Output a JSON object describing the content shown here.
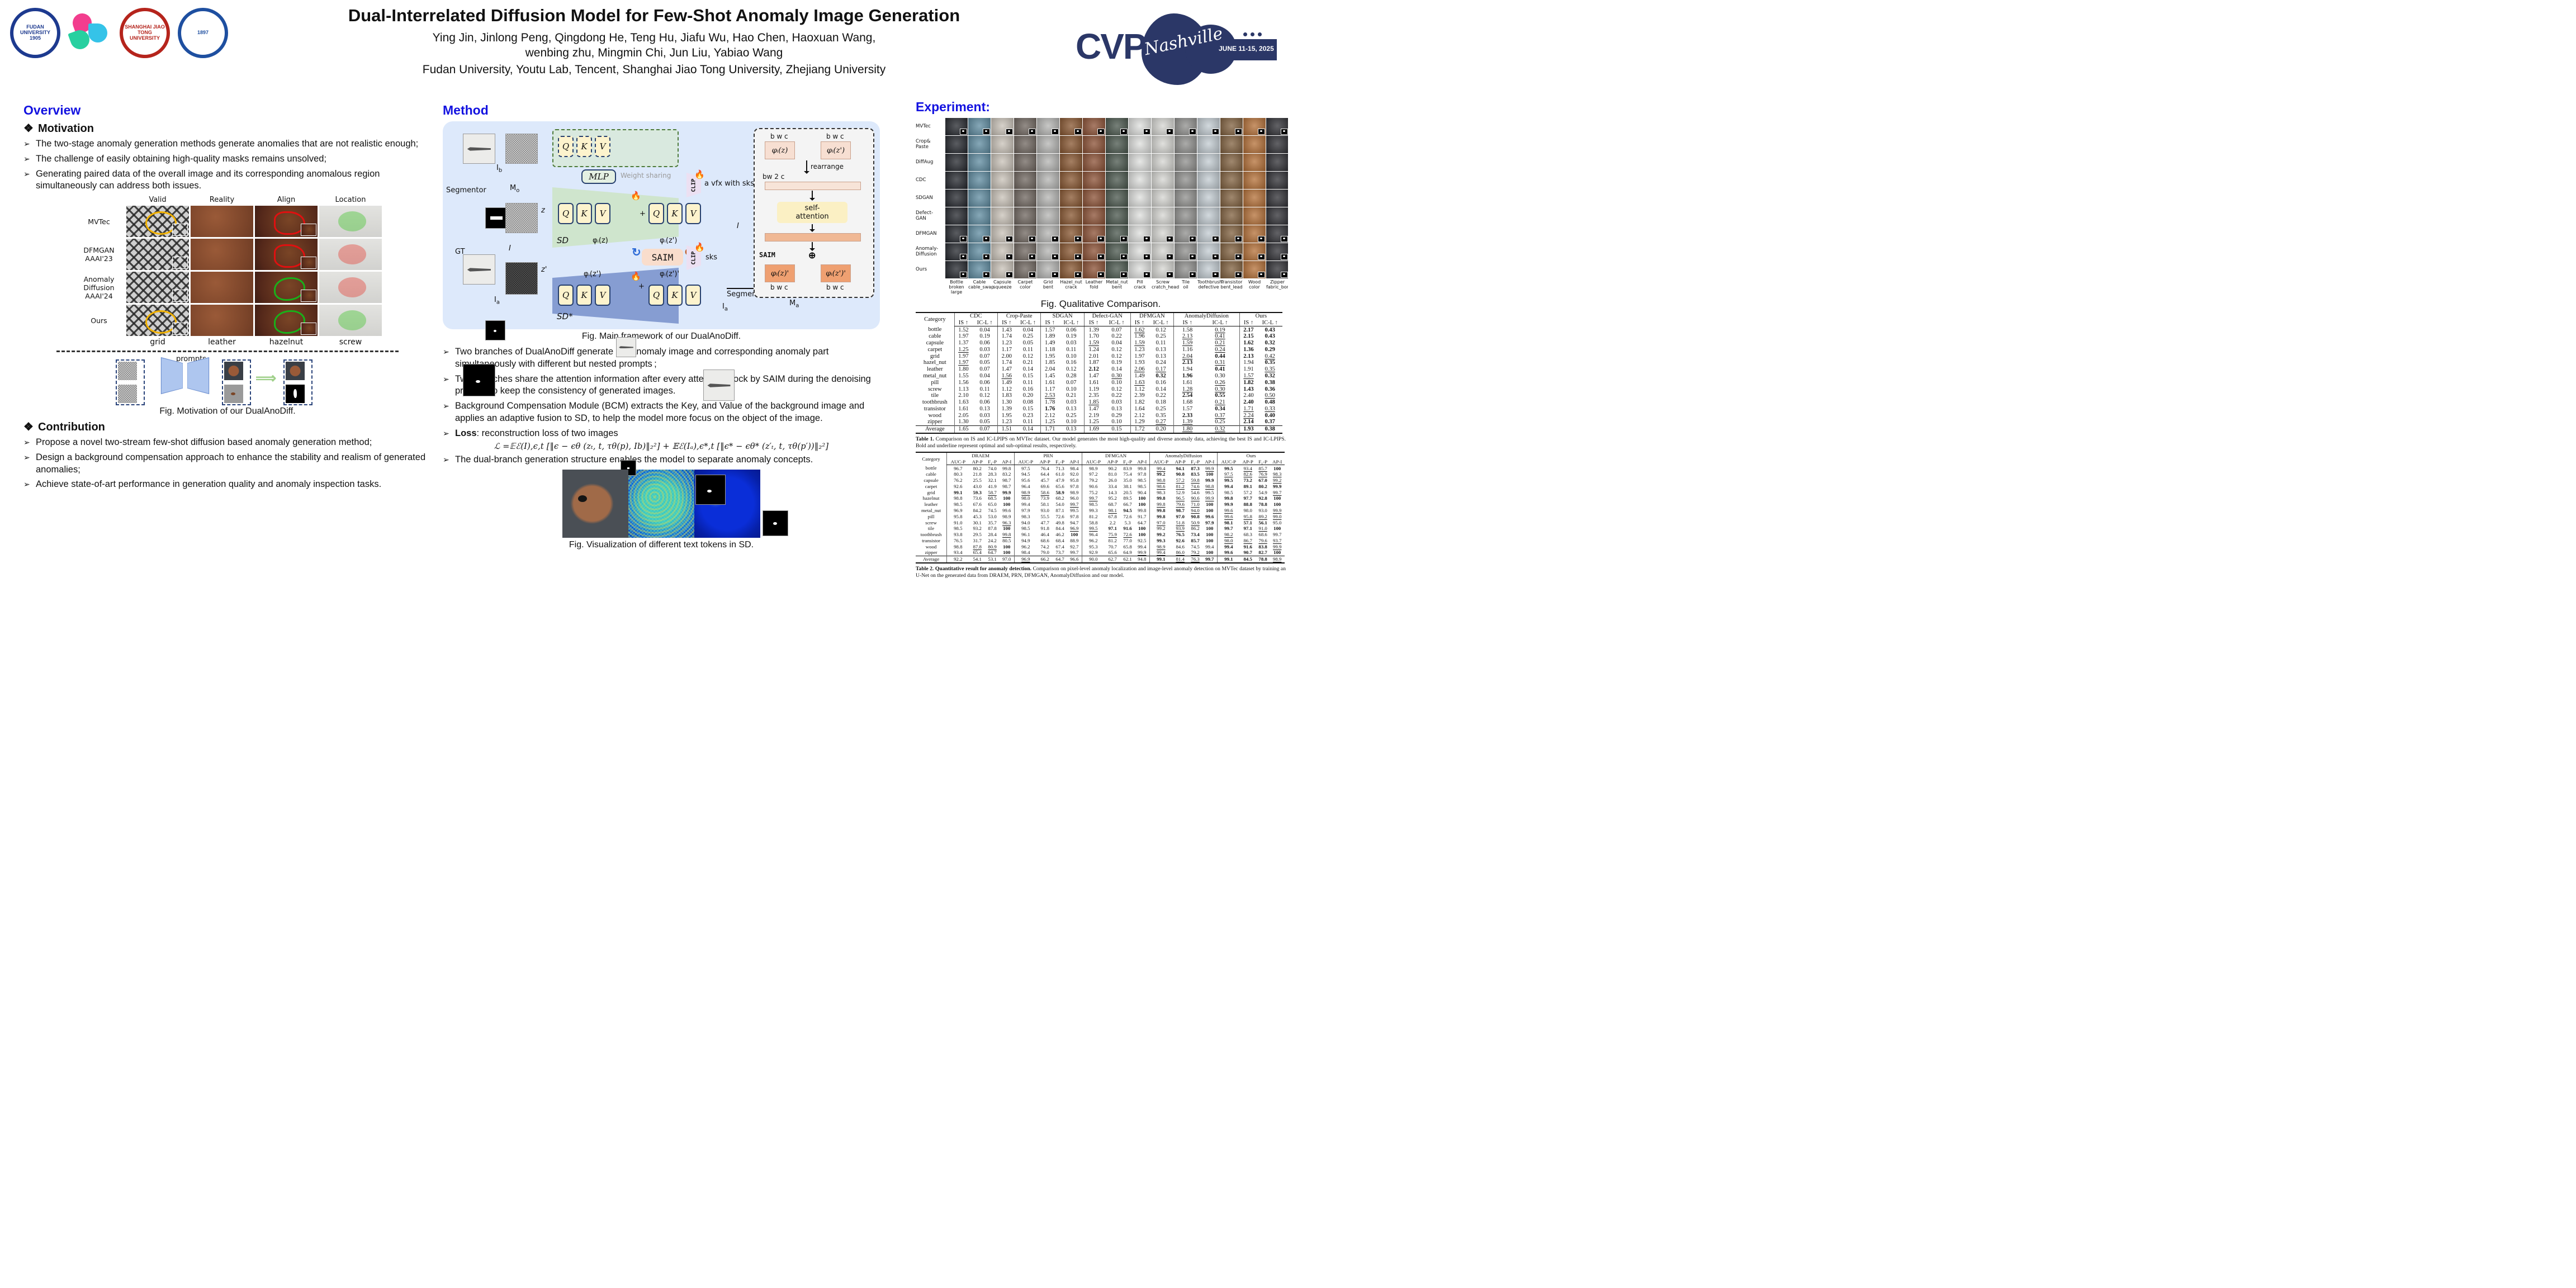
{
  "header": {
    "title": "Dual-Interrelated Diffusion Model for Few-Shot Anomaly Image Generation",
    "authors_line1": "Ying Jin, Jinlong Peng, Qingdong He, Teng Hu, Jiafu Wu, Hao Chen, Haoxuan Wang,",
    "authors_line2": "wenbing zhu, Mingmin Chi, Jun Liu, Yabiao Wang",
    "affiliations": "Fudan University, Youtu Lab, Tencent, Shanghai Jiao Tong University, Zhejiang University",
    "logos": {
      "fudan_top": "FUDAN UNIVERSITY",
      "fudan_year": "1905",
      "sjtu": "SHANGHAI JIAO TONG UNIVERSITY",
      "zju_year": "1897"
    },
    "cvpr": {
      "acronym": "CVPR",
      "city": "Nashville",
      "dates": "JUNE 11-15, 2025"
    }
  },
  "colors": {
    "heading_blue": "#1312e0",
    "cvpr_navy": "#2b3767",
    "framework_bg": "#dde9fb",
    "sd_green": "#cde4c4",
    "sd_star_blue": "#7c95cd",
    "saim_pink": "#f9ddcc",
    "qkv_yellow": "#fdf3cd"
  },
  "overview": {
    "heading": "Overview",
    "motivation_heading": "Motivation",
    "motivation_bullets": [
      "The two-stage anomaly generation methods generate anomalies that are not realistic enough;",
      "The challenge of easily obtaining high-quality masks remains unsolved;",
      "Generating paired data of the overall image and its corresponding anomalous region simultaneously can address both issues."
    ],
    "figure1": {
      "col_labels": [
        "Valid",
        "Reality",
        "Align",
        "Location"
      ],
      "row_labels": [
        "MVTec",
        "DFMGAN\nAAAI'23",
        "Anomaly\nDiffusion\nAAAI'24",
        "Ours"
      ],
      "bottom_labels": [
        "grid",
        "leather",
        "hazelnut",
        "screw"
      ],
      "overlays": [
        [
          "yellow",
          "",
          "redline",
          "green"
        ],
        [
          "",
          "",
          "redline",
          "red"
        ],
        [
          "",
          "",
          "greenline",
          "red"
        ],
        [
          "yellow",
          "",
          "greenline",
          "green"
        ]
      ],
      "prompts_label": "prompts",
      "caption": "Fig. Motivation of our DualAnoDiff."
    },
    "contribution_heading": "Contribution",
    "contribution_bullets": [
      "Propose a novel two-stream few-shot diffusion based anomaly generation method;",
      "Design a background compensation approach to enhance the stability and realism of generated anomalies;",
      "Achieve state-of-art performance in generation quality and anomaly inspection tasks."
    ]
  },
  "method": {
    "heading": "Method",
    "figure_caption": "Fig. Main framework of our DualAnoDiff.",
    "diagram": {
      "segmentor": "Segmentor",
      "segmentor2": "Segmentor",
      "gt": "GT",
      "i": "I",
      "i_out": "I",
      "z": "z",
      "zp": "z'",
      "sd": "SD",
      "sd_star": "SD*",
      "saim": "SAIM",
      "saim_panel": "SAIM",
      "mlp": "MLP",
      "weight_sharing": "Weight sharing",
      "clip": "CLIP",
      "prompt_full": "a vfx with sks",
      "prompt_part": "sks",
      "q": "Q",
      "k": "K",
      "v": "V",
      "plus": "+",
      "oplus": "⊕",
      "fire": "🔥",
      "bwc": "b w c",
      "bw2c": "bw 2 c",
      "rearrange": "rearrange",
      "self_attention": "self-\nattention",
      "phi_z": "φᵢ(z)",
      "phi_zp": "φᵢ(z')",
      "phi_z_out": "φᵢ(z)'",
      "phi_zp_out": "φᵢ(z')'",
      "sub_ib": [
        "I",
        "b"
      ],
      "sub_mo": [
        "M",
        "o"
      ],
      "sub_ia": [
        "I",
        "a"
      ],
      "sub_ia2": [
        "I",
        "a"
      ],
      "sub_ma": [
        "M",
        "a"
      ]
    },
    "bullets": [
      "Two branches of DualAnoDiff generate the anomaly image and corresponding anomaly part simultaneously with different but nested prompts ;",
      "Two branches share the attention information after every attention block by  SAIM during the denoising process to keep the consistency of generated images.",
      "Background Compensation Module (BCM) extracts the Key, and Value of the background image and applies an adaptive fusion to SD,  to help the model more focus on the object of the image."
    ],
    "loss_label": "Loss",
    "loss_rest": ": reconstruction loss of two images",
    "equation": "ℒ =𝔼ℰ(I),ϵ,t [‖ϵ − ϵθ (zₜ, t, τθ(p), Ib)‖₂²] + 𝔼ℰ(Iₐ),ϵ*,t [‖ϵ* − ϵθ* (z′ₜ, t, τθ(p′))‖₂²]",
    "final_bullet": "The dual-branch generation structure enables the model to separate anomaly concepts.",
    "vis_caption": "Fig. Visualization of different text tokens in SD."
  },
  "experiment": {
    "heading": "Experiment:",
    "qualitative": {
      "row_labels": [
        "MVTec",
        "Crop&\nPaste",
        "DiffAug",
        "CDC",
        "SDGAN",
        "Defect-\nGAN",
        "DFMGAN",
        "Anomaly-\nDiffusion",
        "Ours"
      ],
      "col_labels": [
        "Bottle\nbroken large",
        "Cable\ncable_swap",
        "Capsule\nsqueeze",
        "Carpet\ncolor",
        "Grid\nbent",
        "Hazel_nut\ncrack",
        "Leather\nfold",
        "Metal_nut\nbent",
        "Pill\ncrack",
        "Screw\ncratch_head",
        "Tile\noil",
        "Toothbrush\ndefective",
        "Transistor\nbent_lead",
        "Wood\ncolor",
        "Zipper\nfabric_border"
      ],
      "tile_colors": [
        "#23262c",
        "#5e8ba0",
        "#c9c2b8",
        "#6e655e",
        "#b5b5b3",
        "#87552f",
        "#8a4f33",
        "#49564c",
        "#dfe0de",
        "#d6d6d2",
        "#8f8f8d",
        "#c3ccd2",
        "#80603e",
        "#b46f36",
        "#2e2e33"
      ],
      "mask_rows": [
        0,
        6,
        7,
        8
      ],
      "caption": "Fig. Qualitative Comparison."
    },
    "table1": {
      "category_header": "Category",
      "group_headers": [
        "CDC",
        "Crop-Paste",
        "SDGAN",
        "Defect-GAN",
        "DFMGAN",
        "AnomalyDiffusion",
        "Ours"
      ],
      "sub_headers": [
        "IS ↑",
        "IC-L ↑"
      ],
      "categories": [
        "bottle",
        "cable",
        "capsule",
        "carpet",
        "grid",
        "hazel_nut",
        "leather",
        "metal_nut",
        "pill",
        "screw",
        "tile",
        "toothbrush",
        "transistor",
        "wood",
        "zipper",
        "Average"
      ],
      "rows": [
        [
          "1.52",
          "0.04",
          "1.43",
          "0.04",
          "1.57",
          "0.06",
          "1.39",
          "0.07",
          "u1.62",
          "0.12",
          "1.58",
          "u0.19",
          "b2.17",
          "b0.43"
        ],
        [
          "1.97",
          "0.19",
          "1.74",
          "0.25",
          "1.89",
          "0.19",
          "1.70",
          "0.22",
          "1.96",
          "0.25",
          "u2.13",
          "u0.41",
          "b2.15",
          "b0.43"
        ],
        [
          "1.37",
          "0.06",
          "1.23",
          "0.05",
          "1.49",
          "0.03",
          "u1.59",
          "0.04",
          "u1.59",
          "0.11",
          "u1.59",
          "u0.21",
          "b1.62",
          "b0.32"
        ],
        [
          "u1.25",
          "0.03",
          "1.17",
          "0.11",
          "1.18",
          "0.11",
          "1.24",
          "0.12",
          "1.23",
          "0.13",
          "1.16",
          "u0.24",
          "b1.36",
          "b0.29"
        ],
        [
          "1.97",
          "0.07",
          "2.00",
          "0.12",
          "1.95",
          "0.10",
          "2.01",
          "0.12",
          "1.97",
          "0.13",
          "u2.04",
          "b0.44",
          "b2.13",
          "u0.42"
        ],
        [
          "u1.97",
          "0.05",
          "1.74",
          "0.21",
          "1.85",
          "0.16",
          "1.87",
          "0.19",
          "1.93",
          "0.24",
          "b2.13",
          "u0.31",
          "1.94",
          "b0.35"
        ],
        [
          "1.80",
          "0.07",
          "1.47",
          "0.14",
          "2.04",
          "0.12",
          "b2.12",
          "0.14",
          "u2.06",
          "u0.17",
          "1.94",
          "b0.41",
          "1.91",
          "u0.35"
        ],
        [
          "1.55",
          "0.04",
          "u1.56",
          "0.15",
          "1.45",
          "0.28",
          "1.47",
          "u0.30",
          "1.49",
          "b0.32",
          "b1.96",
          "0.30",
          "u1.57",
          "b0.32"
        ],
        [
          "1.56",
          "0.06",
          "1.49",
          "0.11",
          "1.61",
          "0.07",
          "1.61",
          "0.10",
          "u1.63",
          "0.16",
          "1.61",
          "u0.26",
          "b1.82",
          "b0.38"
        ],
        [
          "1.13",
          "0.11",
          "1.12",
          "0.16",
          "1.17",
          "0.10",
          "1.19",
          "0.12",
          "1.12",
          "0.14",
          "u1.28",
          "u0.30",
          "b1.43",
          "b0.36"
        ],
        [
          "2.10",
          "0.12",
          "1.83",
          "0.20",
          "u2.53",
          "0.21",
          "2.35",
          "0.22",
          "2.39",
          "0.22",
          "b2.54",
          "b0.55",
          "2.40",
          "u0.50"
        ],
        [
          "1.63",
          "0.06",
          "1.30",
          "0.08",
          "1.78",
          "0.03",
          "u1.85",
          "0.03",
          "1.82",
          "0.18",
          "1.68",
          "u0.21",
          "b2.40",
          "b0.48"
        ],
        [
          "1.61",
          "0.13",
          "1.39",
          "0.15",
          "b1.76",
          "0.13",
          "1.47",
          "0.13",
          "1.64",
          "0.25",
          "1.57",
          "b0.34",
          "u1.71",
          "u0.33"
        ],
        [
          "2.05",
          "0.03",
          "1.95",
          "0.23",
          "2.12",
          "0.25",
          "2.19",
          "0.29",
          "2.12",
          "0.35",
          "b2.33",
          "u0.37",
          "u2.24",
          "b0.40"
        ],
        [
          "1.30",
          "0.05",
          "1.23",
          "0.11",
          "1.25",
          "0.10",
          "1.25",
          "0.10",
          "1.29",
          "u0.27",
          "u1.39",
          "0.25",
          "b2.14",
          "b0.37"
        ],
        [
          "1.65",
          "0.07",
          "1.51",
          "0.14",
          "1.71",
          "0.13",
          "1.69",
          "0.15",
          "1.72",
          "0.20",
          "u1.80",
          "u0.32",
          "b1.93",
          "b0.38"
        ]
      ],
      "caption_lead": "Table 1.",
      "caption": "  Comparison on IS and IC-LPIPS on MVTec dataset.  Our model generates the most high-quality and diverse anomaly data, achieving the best IS and IC-LPIPS. Bold and underline represent optimal and sub-optimal results, respectively."
    },
    "table2": {
      "category_header": "Category",
      "group_headers": [
        "DRAEM",
        "PRN",
        "DFMGAN",
        "AnomalyDiffusion",
        "Ours"
      ],
      "sub_headers": [
        "AUC-P",
        "AP-P",
        "F₁-P",
        "AP-I"
      ],
      "categories": [
        "bottle",
        "cable",
        "capsule",
        "carpet",
        "grid",
        "hazelnut",
        "leather",
        "metal_nut",
        "pill",
        "screw",
        "tile",
        "toothbrush",
        "transistor",
        "wood",
        "zipper",
        "Average"
      ],
      "rows": [
        [
          "96.7",
          "80.2",
          "74.0",
          "99.8",
          "97.5",
          "76.4",
          "71.3",
          "98.4",
          "98.9",
          "90.2",
          "83.9",
          "99.8",
          "u99.4",
          "b94.1",
          "b87.3",
          "u99.9",
          "b99.5",
          "u93.4",
          "u85.7",
          "b100"
        ],
        [
          "80.3",
          "21.8",
          "28.3",
          "83.2",
          "94.5",
          "64.4",
          "61.0",
          "92.0",
          "97.2",
          "81.0",
          "75.4",
          "97.8",
          "b99.2",
          "b90.8",
          "b83.5",
          "b100",
          "u97.5",
          "u82.6",
          "u76.9",
          "u98.3"
        ],
        [
          "76.2",
          "25.5",
          "32.1",
          "98.7",
          "95.6",
          "45.7",
          "47.9",
          "95.8",
          "79.2",
          "26.0",
          "35.0",
          "98.5",
          "u98.8",
          "u57.2",
          "u59.8",
          "b99.9",
          "b99.5",
          "b73.2",
          "b67.0",
          "u99.2"
        ],
        [
          "92.6",
          "43.0",
          "41.9",
          "98.7",
          "96.4",
          "69.6",
          "65.6",
          "97.8",
          "90.6",
          "33.4",
          "38.1",
          "98.5",
          "u98.6",
          "u81.2",
          "u74.6",
          "u98.8",
          "b99.4",
          "b89.1",
          "b80.2",
          "b99.9"
        ],
        [
          "b99.1",
          "b59.3",
          "u58.7",
          "b99.9",
          "u98.9",
          "u58.6",
          "b58.9",
          "98.9",
          "75.2",
          "14.3",
          "20.5",
          "90.4",
          "98.3",
          "52.9",
          "54.6",
          "99.5",
          "98.5",
          "57.2",
          "54.9",
          "u99.7"
        ],
        [
          "98.8",
          "73.6",
          "68.5",
          "b100",
          "98.0",
          "73.9",
          "68.2",
          "96.0",
          "u99.7",
          "95.2",
          "89.5",
          "b100",
          "b99.8",
          "u96.5",
          "u90.6",
          "u99.9",
          "b99.8",
          "b97.7",
          "b92.8",
          "b100"
        ],
        [
          "98.5",
          "67.6",
          "65.0",
          "b100",
          "99.4",
          "58.1",
          "54.0",
          "u99.7",
          "98.5",
          "68.7",
          "66.7",
          "b100",
          "u99.8",
          "u79.6",
          "u71.0",
          "b100",
          "b99.9",
          "b88.8",
          "b78.8",
          "b100"
        ],
        [
          "96.9",
          "84.2",
          "74.5",
          "99.6",
          "97.9",
          "93.0",
          "87.1",
          "99.5",
          "99.3",
          "u98.1",
          "b94.5",
          "99.8",
          "b99.8",
          "b98.7",
          "u94.0",
          "b100",
          "u99.6",
          "98.0",
          "93.0",
          "u99.9"
        ],
        [
          "95.8",
          "45.3",
          "53.0",
          "98.9",
          "98.3",
          "55.5",
          "72.6",
          "97.8",
          "81.2",
          "67.8",
          "72.6",
          "91.7",
          "b99.8",
          "b97.0",
          "b90.8",
          "b99.6",
          "u99.6",
          "u95.8",
          "u89.2",
          "u99.0"
        ],
        [
          "91.0",
          "30.1",
          "35.7",
          "u96.3",
          "94.0",
          "47.7",
          "49.8",
          "94.7",
          "58.8",
          "2.2",
          "5.3",
          "64.7",
          "u97.0",
          "u51.8",
          "u50.9",
          "b97.9",
          "b98.1",
          "b57.1",
          "b56.1",
          "95.0"
        ],
        [
          "98.5",
          "93.2",
          "87.8",
          "b100",
          "98.5",
          "91.8",
          "84.4",
          "u96.9",
          "u99.5",
          "b97.1",
          "b91.6",
          "b100",
          "99.2",
          "u93.9",
          "86.2",
          "b100",
          "b99.7",
          "b97.1",
          "u91.0",
          "b100"
        ],
        [
          "93.8",
          "29.5",
          "28.4",
          "u99.8",
          "96.1",
          "46.4",
          "46.2",
          "b100",
          "96.4",
          "u75.9",
          "u72.6",
          "b100",
          "b99.2",
          "b76.5",
          "b73.4",
          "b100",
          "u98.2",
          "68.3",
          "68.6",
          "99.7"
        ],
        [
          "76.5",
          "31.7",
          "24.2",
          "80.5",
          "94.9",
          "68.6",
          "68.4",
          "88.9",
          "96.2",
          "81.2",
          "77.0",
          "92.5",
          "b99.3",
          "b92.6",
          "b85.7",
          "b100",
          "u98.0",
          "u86.7",
          "u79.6",
          "u93.7"
        ],
        [
          "98.8",
          "u87.8",
          "u80.9",
          "b100",
          "96.2",
          "74.2",
          "67.4",
          "92.7",
          "95.3",
          "70.7",
          "65.8",
          "99.4",
          "u98.9",
          "84.6",
          "74.5",
          "99.4",
          "b99.4",
          "b91.6",
          "b83.8",
          "u99.9"
        ],
        [
          "93.4",
          "65.4",
          "64.7",
          "b100",
          "98.4",
          "79.0",
          "73.7",
          "99.7",
          "92.9",
          "65.6",
          "64.9",
          "u99.9",
          "u99.4",
          "u86.0",
          "u79.2",
          "b100",
          "b99.6",
          "b90.7",
          "b82.7",
          "b100"
        ],
        [
          "92.2",
          "54.1",
          "53.1",
          "97.0",
          "u96.9",
          "66.2",
          "64.7",
          "96.6",
          "90.0",
          "62.7",
          "62.1",
          "94.8",
          "b99.1",
          "u81.4",
          "u76.3",
          "b99.7",
          "b99.1",
          "b84.5",
          "b78.8",
          "u98.9"
        ]
      ],
      "caption_lead": "Table 2. Quantitative result for anomaly detection.",
      "caption": " Comparison on pixel-level anomaly localization and image-level anomaly detection on MVTec dataset by training an U-Net on the generated data from DRAEM, PRN, DFMGAN, AnomalyDiffusion and our model."
    }
  }
}
